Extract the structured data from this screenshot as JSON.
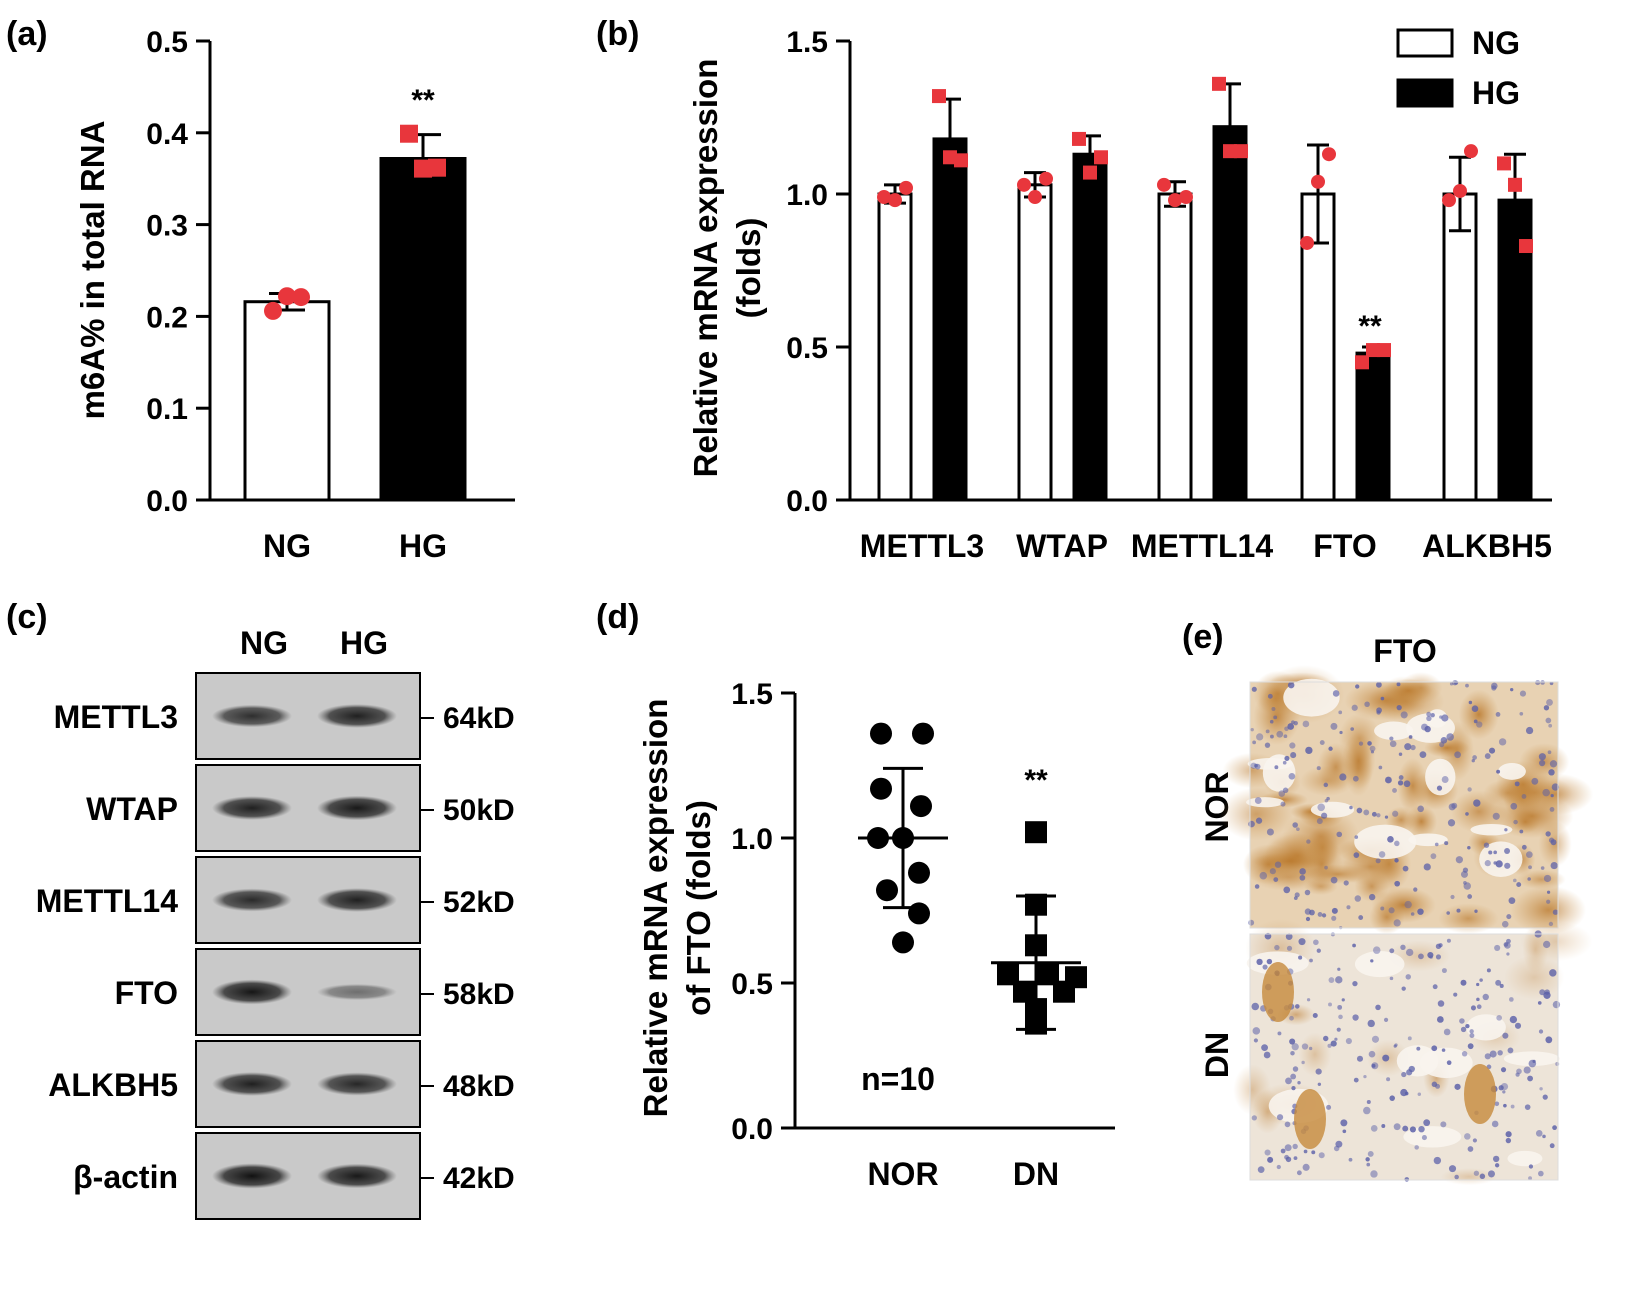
{
  "colors": {
    "accent_red": "#e8363c",
    "black": "#000000",
    "white": "#ffffff",
    "ihc_brown": "#c58a3c",
    "ihc_nuclei": "#5a5fa8"
  },
  "chart_data": [
    {
      "panel": "(a)",
      "type": "bar",
      "categories": [
        "NG",
        "HG"
      ],
      "values": [
        0.216,
        0.372
      ],
      "errors": [
        0.009,
        0.026
      ],
      "points": [
        [
          0.206,
          0.222,
          0.221
        ],
        [
          0.399,
          0.361,
          0.362
        ]
      ],
      "fills": [
        "#ffffff",
        "#000000"
      ],
      "ylabel": "m6A% in total RNA",
      "ylim": [
        0,
        0.5
      ],
      "yticks": [
        "0.0",
        "0.1",
        "0.2",
        "0.3",
        "0.4",
        "0.5"
      ],
      "annotations": [
        {
          "category": "HG",
          "text": "**"
        }
      ]
    },
    {
      "panel": "(b)",
      "type": "bar",
      "categories": [
        "METTL3",
        "WTAP",
        "METTL14",
        "FTO",
        "ALKBH5"
      ],
      "series": [
        {
          "name": "NG",
          "fill": "#ffffff",
          "values": [
            1.0,
            1.03,
            1.0,
            1.0,
            1.0
          ],
          "errors": [
            0.03,
            0.04,
            0.04,
            0.16,
            0.12
          ],
          "points": [
            [
              0.99,
              0.98,
              1.02
            ],
            [
              1.03,
              0.99,
              1.05
            ],
            [
              1.03,
              0.98,
              0.99
            ],
            [
              0.84,
              1.04,
              1.13
            ],
            [
              0.98,
              1.01,
              1.14
            ]
          ]
        },
        {
          "name": "HG",
          "fill": "#000000",
          "values": [
            1.18,
            1.13,
            1.22,
            0.48,
            0.98
          ],
          "errors": [
            0.13,
            0.06,
            0.14,
            0.02,
            0.15
          ],
          "points": [
            [
              1.32,
              1.12,
              1.11
            ],
            [
              1.18,
              1.07,
              1.12
            ],
            [
              1.36,
              1.14,
              1.14
            ],
            [
              0.45,
              0.49,
              0.49
            ],
            [
              1.1,
              1.03,
              0.83
            ]
          ]
        }
      ],
      "ylabel": [
        "Relative mRNA expression",
        "(folds)"
      ],
      "ylim": [
        0,
        1.5
      ],
      "yticks": [
        "0.0",
        "0.5",
        "1.0",
        "1.5"
      ],
      "legend": "top-right",
      "annotations": [
        {
          "category": "FTO",
          "series": "HG",
          "text": "**"
        }
      ]
    },
    {
      "panel": "(d)",
      "type": "scatter",
      "categories": [
        "NOR",
        "DN"
      ],
      "means": [
        1.0,
        0.57
      ],
      "sd": [
        0.24,
        0.23
      ],
      "points": [
        [
          1.36,
          1.36,
          1.17,
          1.11,
          1.0,
          1.0,
          0.88,
          0.82,
          0.74,
          0.64
        ],
        [
          1.02,
          0.77,
          0.63,
          0.53,
          0.53,
          0.52,
          0.47,
          0.47,
          0.41,
          0.36
        ]
      ],
      "markers": [
        "circle",
        "square"
      ],
      "ylabel": [
        "Relative mRNA expression",
        "of FTO (folds)"
      ],
      "ylim": [
        0,
        1.5
      ],
      "yticks": [
        "0.0",
        "0.5",
        "1.0",
        "1.5"
      ],
      "annotations": [
        {
          "category": "DN",
          "text": "**"
        }
      ],
      "note": "n=10"
    }
  ],
  "blot": {
    "panel": "(c)",
    "lanes": [
      "NG",
      "HG"
    ],
    "rows": [
      {
        "protein": "METTL3",
        "size": "64kD",
        "intensity": [
          0.75,
          0.85
        ]
      },
      {
        "protein": "WTAP",
        "size": "50kD",
        "intensity": [
          0.85,
          0.9
        ]
      },
      {
        "protein": "METTL14",
        "size": "52kD",
        "intensity": [
          0.78,
          0.85
        ]
      },
      {
        "protein": "FTO",
        "size": "58kD",
        "intensity": [
          0.92,
          0.3
        ]
      },
      {
        "protein": "ALKBH5",
        "size": "48kD",
        "intensity": [
          0.85,
          0.8
        ]
      },
      {
        "protein": "β-actin",
        "size": "42kD",
        "intensity": [
          0.95,
          0.9
        ]
      }
    ]
  },
  "ihc": {
    "panel": "(e)",
    "title": "FTO",
    "rows": [
      "NOR",
      "DN"
    ]
  }
}
